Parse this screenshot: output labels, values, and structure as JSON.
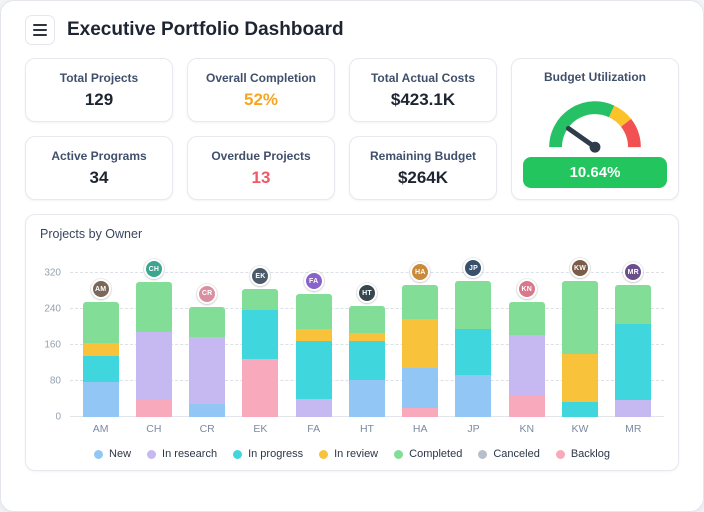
{
  "header": {
    "title": "Executive Portfolio Dashboard"
  },
  "kpis": [
    {
      "label": "Total Projects",
      "value": "129"
    },
    {
      "label": "Overall Completion",
      "value": "52%",
      "value_class": "orange"
    },
    {
      "label": "Total Actual Costs",
      "value": "$423.1K"
    },
    {
      "label": "Active Programs",
      "value": "34"
    },
    {
      "label": "Overdue Projects",
      "value": "13",
      "value_class": "red"
    },
    {
      "label": "Remaining Budget",
      "value": "$264K"
    }
  ],
  "gauge_card": {
    "label": "Budget Utilization",
    "value": "10.64%",
    "badge_color": "#22c55e",
    "arc_low_color": "#27c165",
    "arc_mid_color": "#fcc229",
    "arc_high_color": "#f25151",
    "needle_color": "#303b4c"
  },
  "chart_data": {
    "type": "bar",
    "stacked": true,
    "title": "Projects by Owner",
    "xlabel": "",
    "ylabel": "",
    "ylim": [
      0,
      340
    ],
    "yticks": [
      0,
      80,
      160,
      240,
      320
    ],
    "grid": "dashed-horizontal",
    "legend_position": "bottom",
    "legend": [
      {
        "name": "New",
        "color": "#92c7f5"
      },
      {
        "name": "In research",
        "color": "#c6b8f0"
      },
      {
        "name": "In progress",
        "color": "#40d6dd"
      },
      {
        "name": "In review",
        "color": "#f8c33a"
      },
      {
        "name": "Completed",
        "color": "#82de96"
      },
      {
        "name": "Canceled",
        "color": "#b7bfca"
      },
      {
        "name": "Backlog",
        "color": "#f8a9bc"
      }
    ],
    "categories": [
      "AM",
      "CH",
      "CR",
      "EK",
      "FA",
      "HT",
      "HA",
      "JP",
      "KN",
      "KW",
      "MR"
    ],
    "bars": [
      {
        "owner": "AM",
        "avatar_color": "#7b6757",
        "segments": [
          {
            "name": "New",
            "value": 78
          },
          {
            "name": "In progress",
            "value": 58
          },
          {
            "name": "In review",
            "value": 28
          },
          {
            "name": "Completed",
            "value": 91
          }
        ]
      },
      {
        "owner": "CH",
        "avatar_color": "#3aa68e",
        "segments": [
          {
            "name": "Backlog",
            "value": 40
          },
          {
            "name": "In research",
            "value": 150
          },
          {
            "name": "Completed",
            "value": 110
          }
        ]
      },
      {
        "owner": "CR",
        "avatar_color": "#d98fa0",
        "segments": [
          {
            "name": "New",
            "value": 30
          },
          {
            "name": "In research",
            "value": 148
          },
          {
            "name": "Completed",
            "value": 67
          }
        ]
      },
      {
        "owner": "EK",
        "avatar_color": "#4a5a68",
        "segments": [
          {
            "name": "Backlog",
            "value": 130
          },
          {
            "name": "In progress",
            "value": 108
          },
          {
            "name": "Completed",
            "value": 46
          }
        ]
      },
      {
        "owner": "FA",
        "avatar_color": "#8a63c9",
        "segments": [
          {
            "name": "In research",
            "value": 40
          },
          {
            "name": "In progress",
            "value": 128
          },
          {
            "name": "In review",
            "value": 27
          },
          {
            "name": "Completed",
            "value": 78
          }
        ]
      },
      {
        "owner": "HT",
        "avatar_color": "#37474f",
        "segments": [
          {
            "name": "New",
            "value": 83
          },
          {
            "name": "In progress",
            "value": 85
          },
          {
            "name": "In review",
            "value": 18
          },
          {
            "name": "Completed",
            "value": 60
          }
        ]
      },
      {
        "owner": "HA",
        "avatar_color": "#c98a3a",
        "segments": [
          {
            "name": "Backlog",
            "value": 20
          },
          {
            "name": "New",
            "value": 90
          },
          {
            "name": "In review",
            "value": 107
          },
          {
            "name": "Completed",
            "value": 76
          }
        ]
      },
      {
        "owner": "JP",
        "avatar_color": "#38506b",
        "segments": [
          {
            "name": "New",
            "value": 94
          },
          {
            "name": "In progress",
            "value": 101
          },
          {
            "name": "Completed",
            "value": 107
          }
        ]
      },
      {
        "owner": "KN",
        "avatar_color": "#d9788a",
        "segments": [
          {
            "name": "Backlog",
            "value": 49
          },
          {
            "name": "In research",
            "value": 134
          },
          {
            "name": "Completed",
            "value": 72
          }
        ]
      },
      {
        "owner": "KW",
        "avatar_color": "#7a5c48",
        "segments": [
          {
            "name": "In progress",
            "value": 34
          },
          {
            "name": "In review",
            "value": 105
          },
          {
            "name": "Completed",
            "value": 163
          }
        ]
      },
      {
        "owner": "MR",
        "avatar_color": "#6b4f8a",
        "segments": [
          {
            "name": "In research",
            "value": 38
          },
          {
            "name": "In progress",
            "value": 168
          },
          {
            "name": "Completed",
            "value": 87
          }
        ]
      }
    ]
  }
}
